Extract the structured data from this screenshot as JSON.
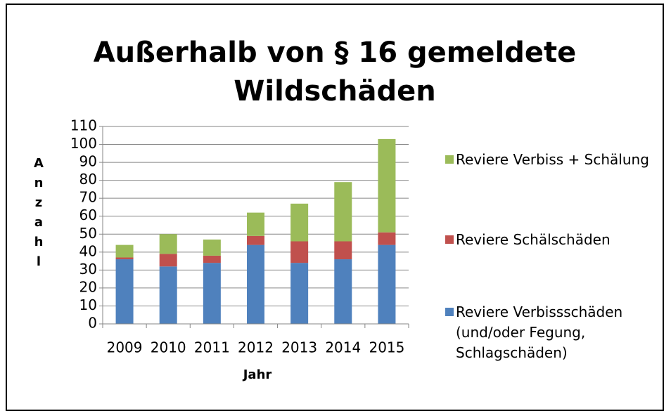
{
  "chart_data": {
    "type": "stacked_bar",
    "title": [
      "Außerhalb von § 16 gemeldete",
      "Wildschäden"
    ],
    "x_label": "Jahr",
    "y_label": "Anzahl",
    "categories": [
      "2009",
      "2010",
      "2011",
      "2012",
      "2013",
      "2014",
      "2015"
    ],
    "series": [
      {
        "name": "Reviere Verbissschäden (und/oder Fegung, Schlagschäden)",
        "color": "#4f81bd",
        "values": [
          36,
          32,
          34,
          44,
          34,
          36,
          44
        ]
      },
      {
        "name": "Reviere Schälschäden",
        "color": "#c0504d",
        "values": [
          1,
          7,
          4,
          5,
          12,
          10,
          7
        ]
      },
      {
        "name": "Reviere Verbiss + Schälung",
        "color": "#9bbb59",
        "values": [
          7,
          11,
          9,
          13,
          21,
          33,
          52
        ]
      }
    ],
    "ylim": [
      0,
      110
    ],
    "yticks": [
      0,
      10,
      20,
      30,
      40,
      50,
      60,
      70,
      80,
      90,
      100,
      110
    ],
    "grid": true
  }
}
